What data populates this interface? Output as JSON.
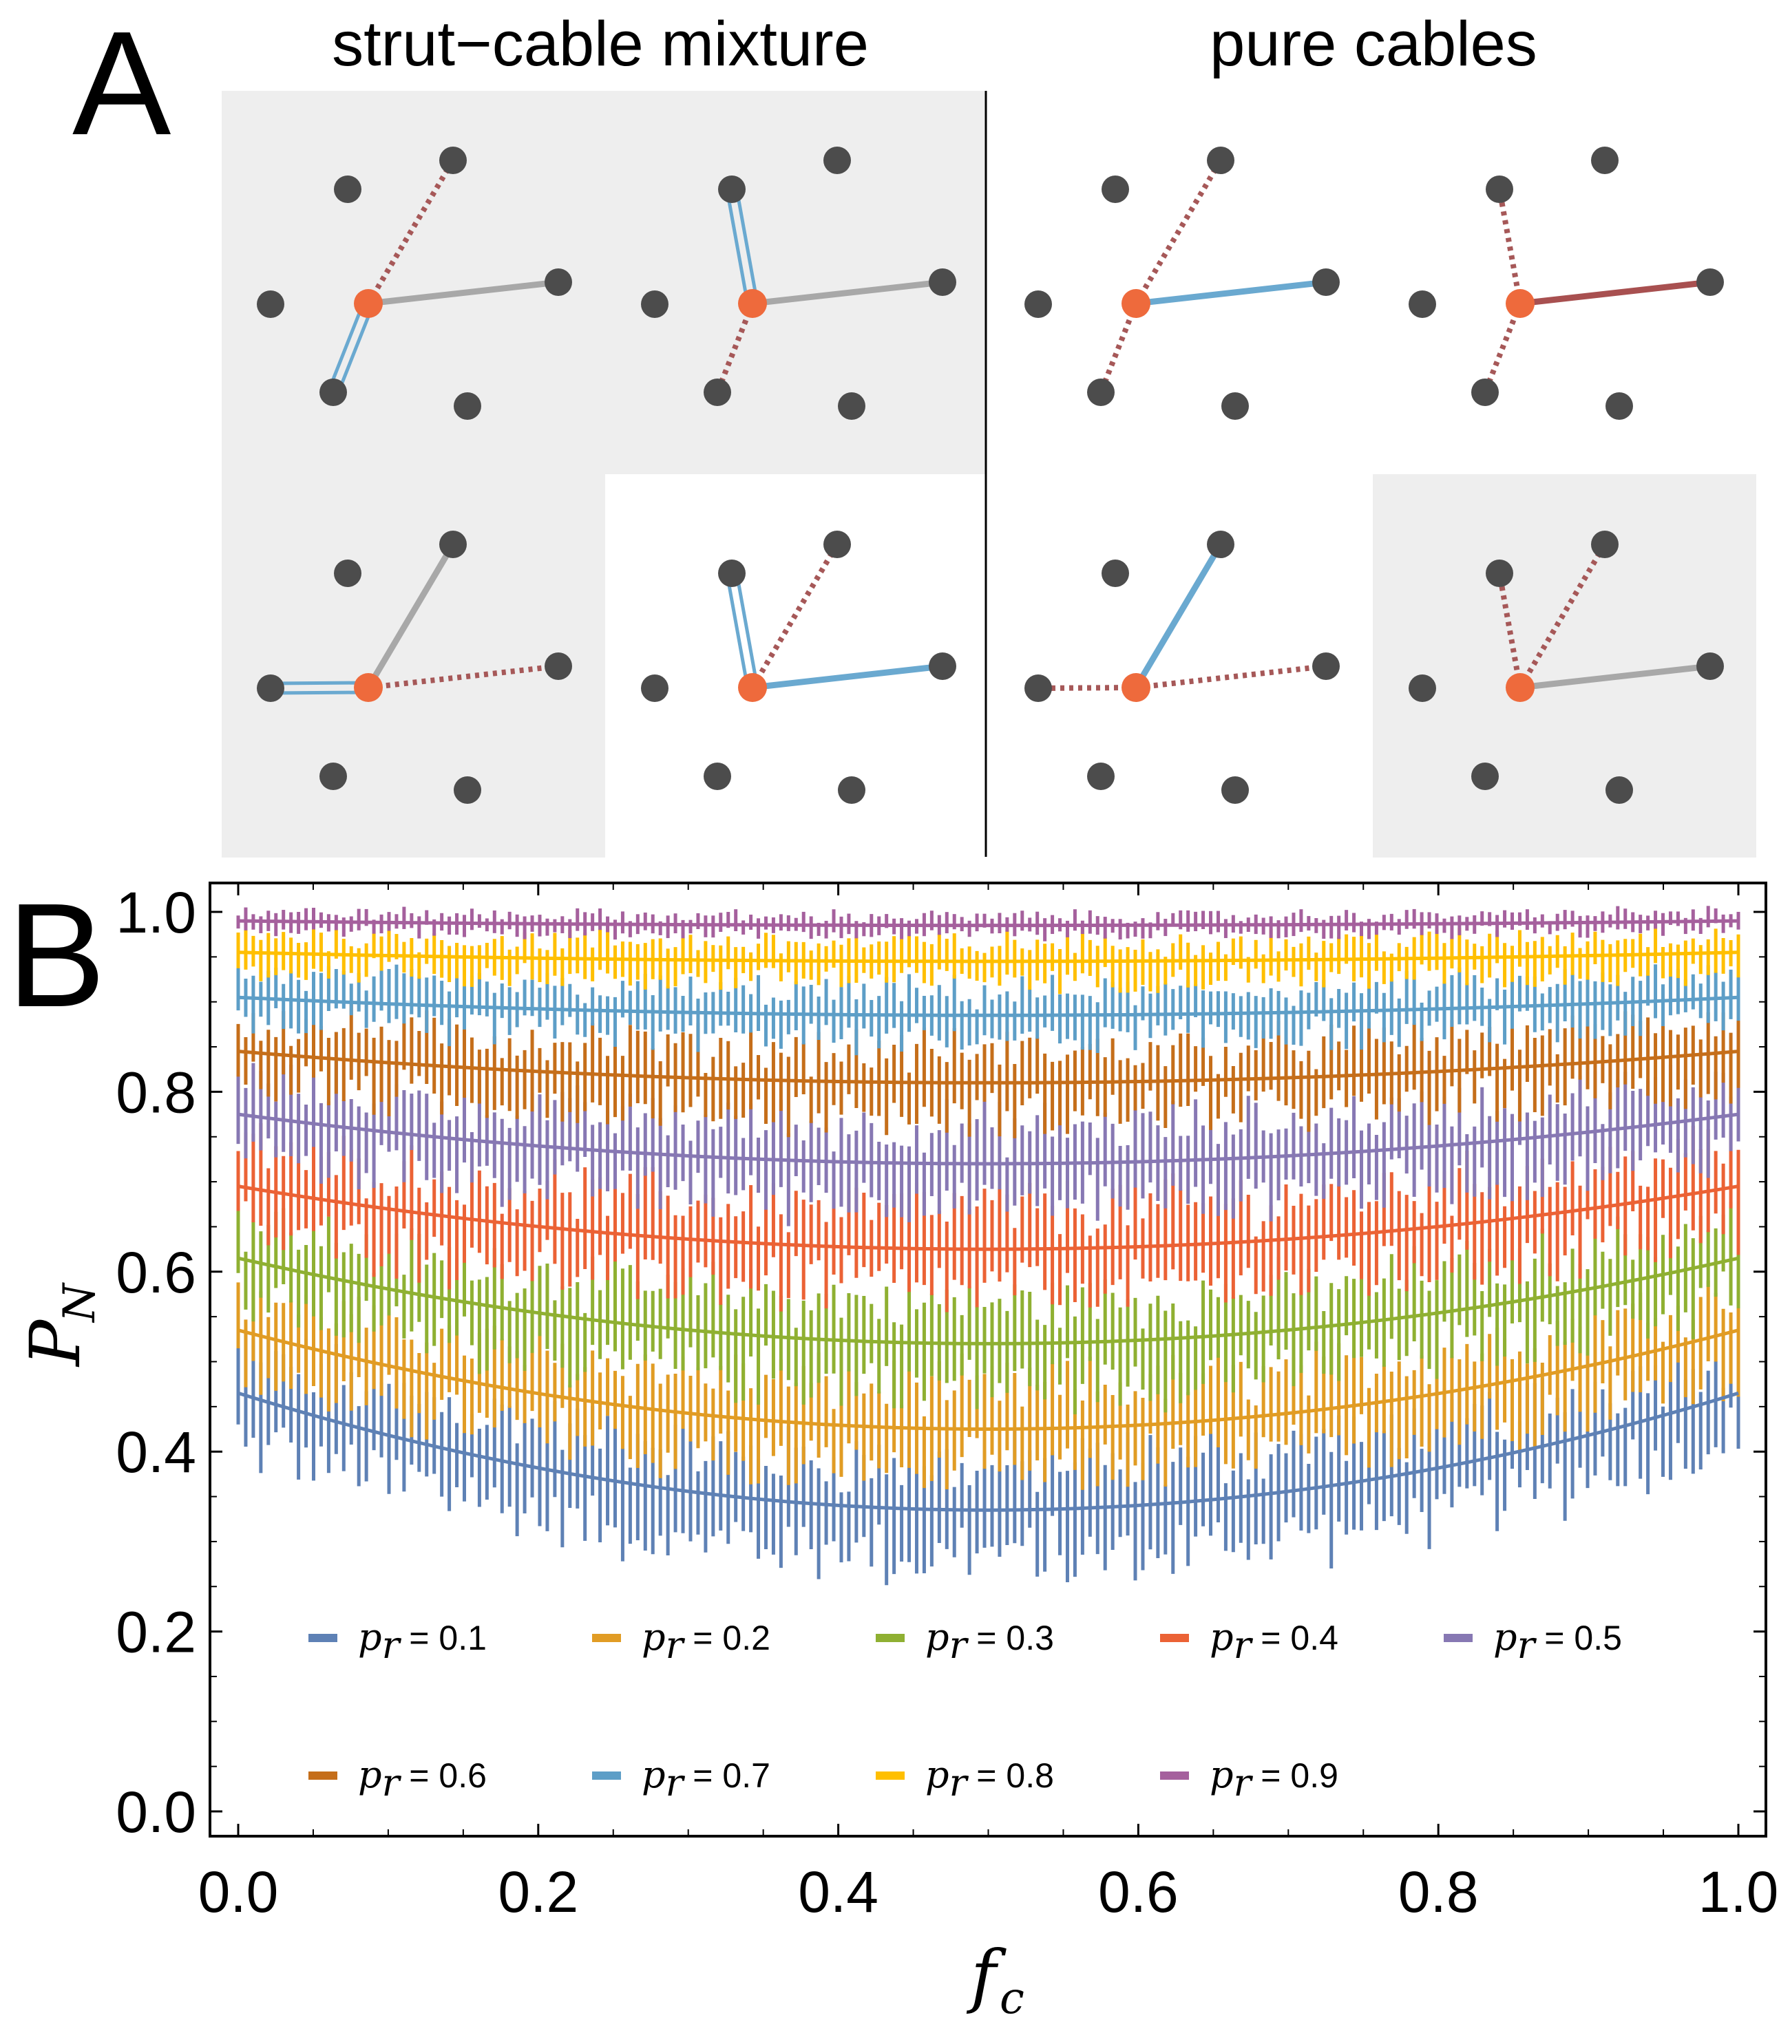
{
  "panel_a": {
    "label": "A",
    "left_title": "strut−cable mixture",
    "right_title": "pure cables",
    "colors": {
      "background": "#eeeeee",
      "node": "#4c4c4c",
      "center": "#ee6a3c",
      "strut": "#a8a8a8",
      "cable": "#6aa9d0",
      "dotted": "#a65858",
      "red_cable": "#a85050"
    }
  },
  "chart_data": {
    "type": "line",
    "panel_label": "B",
    "title": "",
    "xlabel": "f_c",
    "ylabel": "P_N",
    "xlim": [
      -0.03,
      1.02
    ],
    "ylim": [
      -0.03,
      1.05
    ],
    "xticks": [
      "0.0",
      "0.2",
      "0.4",
      "0.6",
      "0.8",
      "1.0"
    ],
    "yticks": [
      "0.0",
      "0.2",
      "0.4",
      "0.6",
      "0.8",
      "1.0"
    ],
    "legend_placement": "lower-center",
    "legend_symbol": "p",
    "legend_subscript": "r",
    "series_note": "Each series: scattered points with vertical error bars over f_c in [0, 1], plus a smooth fit curve; values are [f_c, P_N] points of the fit curve.",
    "series": [
      {
        "name": "p_r = 0.1",
        "color": "#5e81b5",
        "errbar": 0.05,
        "values": [
          [
            0.0,
            0.465
          ],
          [
            0.5,
            0.335
          ],
          [
            1.0,
            0.465
          ]
        ]
      },
      {
        "name": "p_r = 0.2",
        "color": "#e19c24",
        "errbar": 0.045,
        "values": [
          [
            0.0,
            0.535
          ],
          [
            0.5,
            0.425
          ],
          [
            1.0,
            0.535
          ]
        ]
      },
      {
        "name": "p_r = 0.3",
        "color": "#8fb032",
        "errbar": 0.045,
        "values": [
          [
            0.0,
            0.615
          ],
          [
            0.5,
            0.52
          ],
          [
            1.0,
            0.615
          ]
        ]
      },
      {
        "name": "p_r = 0.4",
        "color": "#eb6235",
        "errbar": 0.045,
        "values": [
          [
            0.0,
            0.695
          ],
          [
            0.5,
            0.625
          ],
          [
            1.0,
            0.695
          ]
        ]
      },
      {
        "name": "p_r = 0.5",
        "color": "#8778b3",
        "errbar": 0.04,
        "values": [
          [
            0.0,
            0.775
          ],
          [
            0.5,
            0.72
          ],
          [
            1.0,
            0.775
          ]
        ]
      },
      {
        "name": "p_r = 0.6",
        "color": "#c56e1a",
        "errbar": 0.035,
        "values": [
          [
            0.0,
            0.845
          ],
          [
            0.5,
            0.81
          ],
          [
            1.0,
            0.845
          ]
        ]
      },
      {
        "name": "p_r = 0.7",
        "color": "#5d9ec7",
        "errbar": 0.025,
        "values": [
          [
            0.0,
            0.905
          ],
          [
            0.5,
            0.885
          ],
          [
            1.0,
            0.905
          ]
        ]
      },
      {
        "name": "p_r = 0.8",
        "color": "#ffbf00",
        "errbar": 0.02,
        "values": [
          [
            0.0,
            0.955
          ],
          [
            0.5,
            0.945
          ],
          [
            1.0,
            0.955
          ]
        ]
      },
      {
        "name": "p_r = 0.9",
        "color": "#a5609d",
        "errbar": 0.01,
        "values": [
          [
            0.0,
            0.99
          ],
          [
            0.5,
            0.985
          ],
          [
            1.0,
            0.99
          ]
        ]
      }
    ],
    "legend_values": [
      "0.1",
      "0.2",
      "0.3",
      "0.4",
      "0.5",
      "0.6",
      "0.7",
      "0.8",
      "0.9"
    ]
  }
}
